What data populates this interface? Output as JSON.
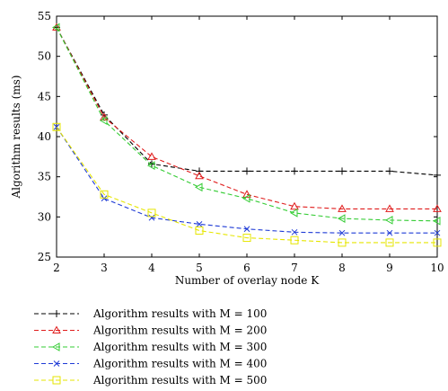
{
  "chart_data": {
    "type": "line",
    "xlabel": "Number of overlay node K",
    "ylabel": "Algorithm results (ms)",
    "x": [
      2,
      3,
      4,
      5,
      6,
      7,
      8,
      9,
      10
    ],
    "xlim": [
      2,
      10
    ],
    "ylim": [
      25,
      55
    ],
    "xticks": [
      "2",
      "3",
      "4",
      "5",
      "6",
      "7",
      "8",
      "9",
      "10"
    ],
    "yticks": [
      "25",
      "30",
      "35",
      "40",
      "45",
      "50",
      "55"
    ],
    "ytick_values": [
      25,
      30,
      35,
      40,
      45,
      50,
      55
    ],
    "grid": false,
    "legend_position": "below",
    "series": [
      {
        "name": "Algorithm results with M = 100",
        "color": "#000000",
        "marker": "plus",
        "values": [
          53.6,
          42.7,
          36.6,
          35.7,
          35.7,
          35.7,
          35.7,
          35.7,
          35.2
        ]
      },
      {
        "name": "Algorithm results with M = 200",
        "color": "#e01c1c",
        "marker": "triangle-up",
        "values": [
          53.6,
          42.4,
          37.5,
          35.1,
          32.8,
          31.3,
          31.0,
          31.0,
          31.0
        ]
      },
      {
        "name": "Algorithm results with M = 300",
        "color": "#33cc33",
        "marker": "triangle-left",
        "values": [
          53.6,
          42.0,
          36.4,
          33.7,
          32.3,
          30.5,
          29.8,
          29.6,
          29.5
        ]
      },
      {
        "name": "Algorithm results with M = 400",
        "color": "#1f3bd6",
        "marker": "x",
        "values": [
          41.2,
          32.3,
          29.9,
          29.1,
          28.5,
          28.1,
          28.0,
          28.0,
          28.0
        ]
      },
      {
        "name": "Algorithm results with M = 500",
        "color": "#e6e600",
        "marker": "square",
        "values": [
          41.2,
          32.8,
          30.5,
          28.3,
          27.4,
          27.1,
          26.8,
          26.8,
          26.8
        ]
      }
    ]
  }
}
